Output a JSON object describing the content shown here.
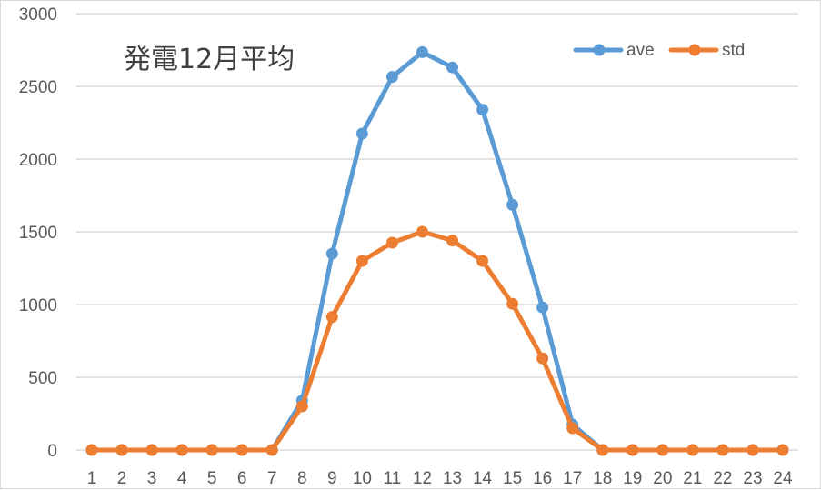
{
  "chart_data": {
    "type": "line",
    "title": "発電12月平均",
    "xlabel": "",
    "ylabel": "",
    "categories": [
      "1",
      "2",
      "3",
      "4",
      "5",
      "6",
      "7",
      "8",
      "9",
      "10",
      "11",
      "12",
      "13",
      "14",
      "15",
      "16",
      "17",
      "18",
      "19",
      "20",
      "21",
      "22",
      "23",
      "24"
    ],
    "ylim": [
      0,
      3000
    ],
    "yticks": [
      0,
      500,
      1000,
      1500,
      2000,
      2500,
      3000
    ],
    "grid": true,
    "legend_position": "top-right",
    "series": [
      {
        "name": "ave",
        "color": "#5B9BD5",
        "values": [
          0,
          0,
          0,
          0,
          0,
          0,
          0,
          340,
          1350,
          2175,
          2565,
          2735,
          2630,
          2340,
          1685,
          980,
          175,
          0,
          0,
          0,
          0,
          0,
          0,
          0
        ]
      },
      {
        "name": "std",
        "color": "#ED7D31",
        "values": [
          0,
          0,
          0,
          0,
          0,
          0,
          0,
          300,
          915,
          1300,
          1425,
          1500,
          1440,
          1300,
          1005,
          630,
          150,
          0,
          0,
          0,
          0,
          0,
          0,
          0
        ]
      }
    ]
  },
  "colors": {
    "grid": "#d9d9d9",
    "text": "#595959"
  }
}
